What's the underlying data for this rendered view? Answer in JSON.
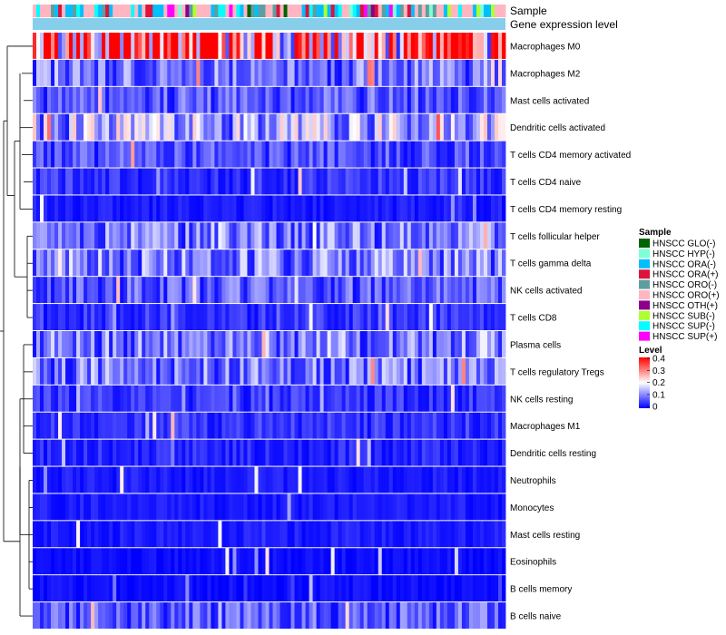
{
  "chart_data": {
    "type": "heatmap",
    "title": "",
    "annotation_rows": [
      "Sample",
      "Gene expression level"
    ],
    "rows": [
      "Macrophages M0",
      "Macrophages M2",
      "Mast cells activated",
      "Dendritic cells activated",
      "T cells CD4 memory activated",
      "T cells CD4 naive",
      "T cells CD4 memory resting",
      "T cells follicular helper",
      "T cells gamma delta",
      "NK cells activated",
      "T cells CD8",
      "Plasma cells",
      "T cells regulatory  Tregs",
      "NK cells resting",
      "Macrophages M1",
      "Dendritic cells resting",
      "Neutrophils",
      "Monocytes",
      "Mast cells resting",
      "Eosinophils",
      "B cells memory",
      "B cells naive"
    ],
    "n_samples": 130,
    "approx_row_means": [
      0.33,
      0.09,
      0.07,
      0.13,
      0.06,
      0.04,
      0.02,
      0.09,
      0.1,
      0.07,
      0.04,
      0.1,
      0.09,
      0.04,
      0.04,
      0.03,
      0.02,
      0.02,
      0.02,
      0.01,
      0.01,
      0.07
    ],
    "color_scale": {
      "stops": [
        0,
        0.2,
        0.4
      ],
      "colors": [
        "#0000ff",
        "#ffffff",
        "#ff0000"
      ]
    },
    "legend_sample": {
      "title": "Sample",
      "entries": [
        {
          "label": "HNSCC GLO(-)",
          "color": "#006400"
        },
        {
          "label": "HNSCC HYP(-)",
          "color": "#7fffd4"
        },
        {
          "label": "HNSCC ORA(-)",
          "color": "#00bfff"
        },
        {
          "label": "HNSCC ORA(+)",
          "color": "#dc143c"
        },
        {
          "label": "HNSCC ORO(-)",
          "color": "#5f9ea0"
        },
        {
          "label": "HNSCC ORO(+)",
          "color": "#ffb6c1"
        },
        {
          "label": "HNSCC OTH(+)",
          "color": "#8b008b"
        },
        {
          "label": "HNSCC SUB(-)",
          "color": "#adff2f"
        },
        {
          "label": "HNSCC SUP(-)",
          "color": "#00ffff"
        },
        {
          "label": "HNSCC SUP(+)",
          "color": "#ff00ff"
        }
      ]
    },
    "legend_level": {
      "title": "Level",
      "ticks": [
        "0.4",
        "0.3",
        "0.2",
        "0.1",
        "0"
      ]
    },
    "gene_expression_color": "#87ceeb"
  }
}
